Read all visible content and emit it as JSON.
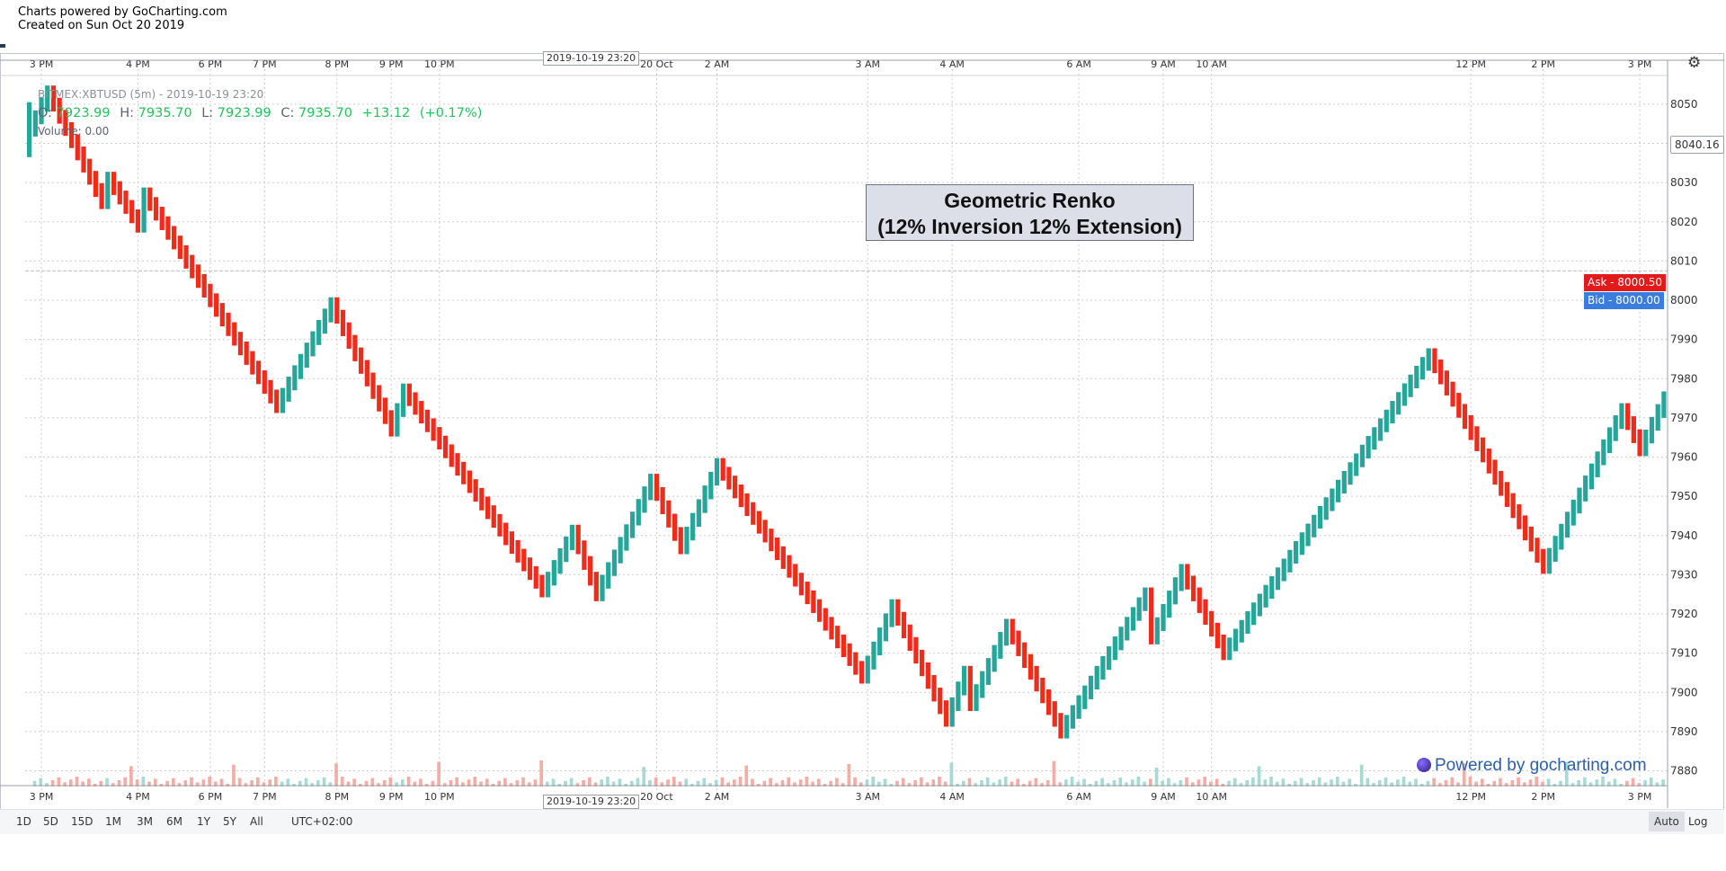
{
  "header": {
    "line1": "Charts powered by GoCharting.com",
    "line2": "Created on Sun Oct 20 2019"
  },
  "legend": {
    "symbol": "BITMEX:XBTUSD (5m) - 2019-10-19 23:20",
    "o_label": "O:",
    "o_value": "7923.99",
    "h_label": "H:",
    "h_value": "7935.70",
    "l_label": "L:",
    "l_value": "7923.99",
    "c_label": "C:",
    "c_value": "7935.70",
    "change": "+13.12",
    "change_pct": "(+0.17%)",
    "volume": "Volume: 0.00"
  },
  "annotation": {
    "line1": "Geometric Renko",
    "line2": "(12% Inversion 12% Extension)"
  },
  "price_tags": {
    "ask": "Ask - 8000.50",
    "bid": "Bid - 8000.00",
    "last": "8040.16"
  },
  "crosshair_time": "2019-10-19 23:20",
  "watermark": "Powered by gocharting.com",
  "footer": {
    "ranges": [
      "1D",
      "5D",
      "15D",
      "1M",
      "3M",
      "6M",
      "1Y",
      "5Y",
      "All"
    ],
    "timezone": "UTC+02:00",
    "auto": "Auto",
    "log": "Log"
  },
  "colors": {
    "up": "#26a69a",
    "down": "#ef2b1c",
    "grid": "#c8ccd4",
    "vol_up": "#9fd6cf",
    "vol_down": "#f4a39a"
  },
  "icons": [
    "gear-icon",
    "globe-icon"
  ],
  "chart_data": {
    "type": "renko",
    "ylim": [
      7876,
      8058
    ],
    "y_ticks": [
      7880,
      7890,
      7900,
      7910,
      7920,
      7930,
      7940,
      7950,
      7960,
      7970,
      7980,
      7990,
      8000,
      8010,
      8020,
      8030,
      8040,
      8050
    ],
    "x_tick_labels": [
      "3 PM",
      "4 PM",
      "6 PM",
      "7 PM",
      "8 PM",
      "9 PM",
      "10 PM",
      "20 Oct",
      "2 AM",
      "3 AM",
      "4 AM",
      "6 AM",
      "9 AM",
      "10 AM",
      "12 PM",
      "2 PM",
      "3 PM"
    ],
    "x_tick_brick_index": [
      2,
      18,
      30,
      39,
      51,
      60,
      68,
      104,
      114,
      139,
      153,
      174,
      188,
      196,
      239,
      251,
      267
    ],
    "grid": true,
    "brick_size": 3.5,
    "pivots": [
      {
        "brick": 0,
        "price": 8043.5
      },
      {
        "brick": 3,
        "price": 8053
      },
      {
        "brick": 12,
        "price": 8025
      },
      {
        "brick": 13,
        "price": 8031
      },
      {
        "brick": 18,
        "price": 8019
      },
      {
        "brick": 19,
        "price": 8027
      },
      {
        "brick": 41,
        "price": 7973
      },
      {
        "brick": 50,
        "price": 7999
      },
      {
        "brick": 60,
        "price": 7967
      },
      {
        "brick": 62,
        "price": 7977
      },
      {
        "brick": 85,
        "price": 7926
      },
      {
        "brick": 90,
        "price": 7941
      },
      {
        "brick": 94,
        "price": 7925
      },
      {
        "brick": 103,
        "price": 7954
      },
      {
        "brick": 108,
        "price": 7937
      },
      {
        "brick": 114,
        "price": 7958
      },
      {
        "brick": 138,
        "price": 7904
      },
      {
        "brick": 143,
        "price": 7922
      },
      {
        "brick": 152,
        "price": 7893
      },
      {
        "brick": 155,
        "price": 7905
      },
      {
        "brick": 156,
        "price": 7897
      },
      {
        "brick": 162,
        "price": 7917
      },
      {
        "brick": 171,
        "price": 7890
      },
      {
        "brick": 185,
        "price": 7925
      },
      {
        "brick": 186,
        "price": 7914
      },
      {
        "brick": 191,
        "price": 7931
      },
      {
        "brick": 198,
        "price": 7910
      },
      {
        "brick": 232,
        "price": 7986
      },
      {
        "brick": 251,
        "price": 7932
      },
      {
        "brick": 264,
        "price": 7972
      },
      {
        "brick": 267,
        "price": 7962
      },
      {
        "brick": 271,
        "price": 7975
      }
    ],
    "ask": 8000.5,
    "bid": 8000.0,
    "last": 8040.16
  }
}
